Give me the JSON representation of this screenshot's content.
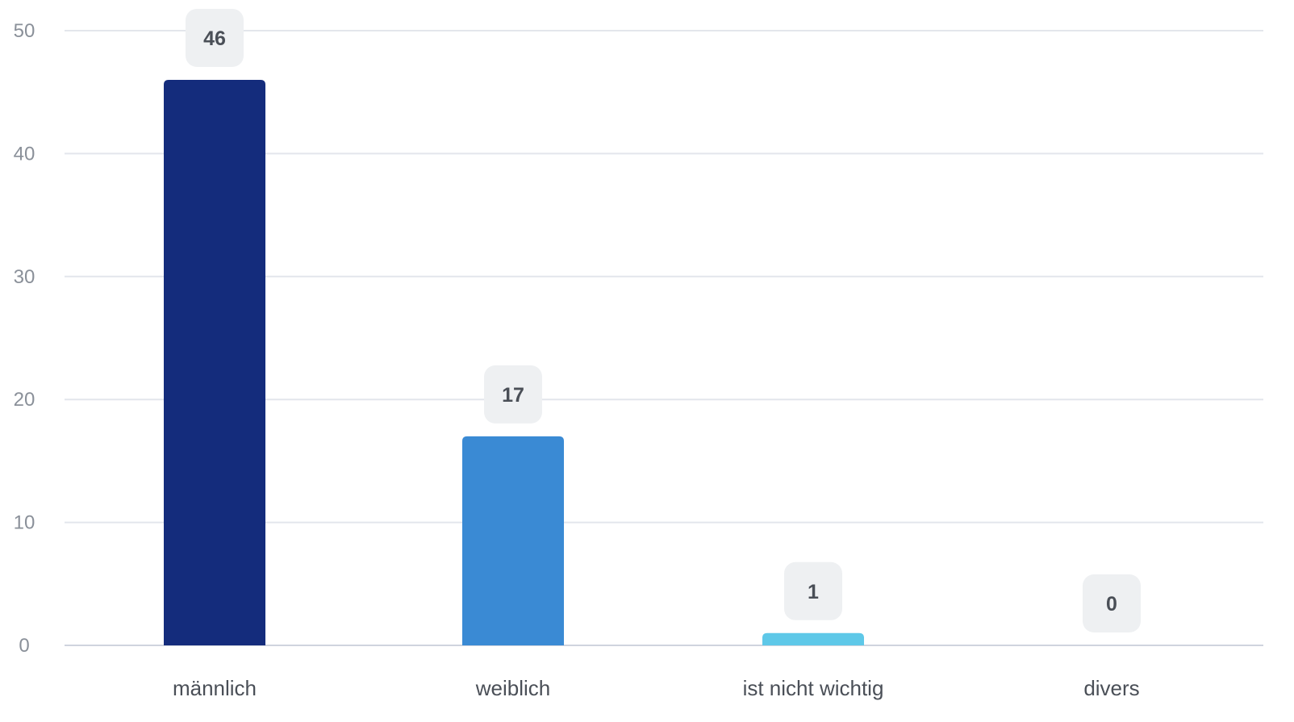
{
  "chart_data": {
    "type": "bar",
    "title": "",
    "xlabel": "",
    "ylabel": "",
    "categories": [
      "männlich",
      "weiblich",
      "ist nicht wichtig",
      "divers"
    ],
    "values": [
      46,
      17,
      1,
      0
    ],
    "value_labels": [
      "46",
      "17",
      "1",
      "0"
    ],
    "bar_colors": [
      "#142c7c",
      "#3a8ad4",
      "#5ec8e8",
      "#5ec8e8"
    ],
    "ylim": [
      0,
      50
    ],
    "yticks": [
      0,
      10,
      20,
      30,
      40,
      50
    ],
    "ytick_labels": [
      "0",
      "10",
      "20",
      "30",
      "40",
      "50"
    ],
    "grid": true,
    "legend": "none"
  }
}
